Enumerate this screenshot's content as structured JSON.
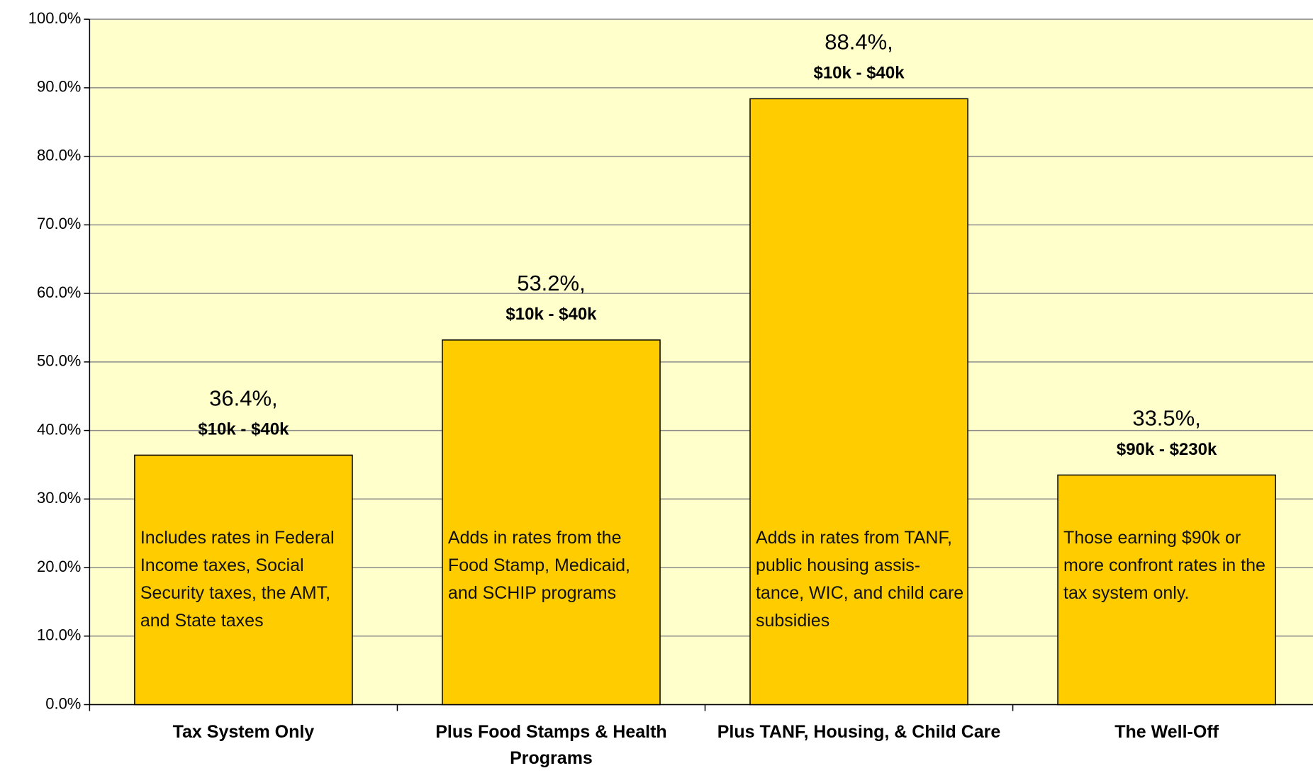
{
  "chart_data": {
    "type": "bar",
    "categories": [
      "Tax System Only",
      "Plus Food Stamps & Health Programs",
      "Plus TANF, Housing, & Child Care",
      "The Well-Off"
    ],
    "values": [
      36.4,
      53.2,
      88.4,
      33.5
    ],
    "value_labels": [
      "36.4%,",
      "53.2%,",
      "88.4%,",
      "33.5%,"
    ],
    "ranges": [
      "$10k - $40k",
      "$10k - $40k",
      "$10k - $40k",
      "$90k - $230k"
    ],
    "notes": [
      "Includes rates in Federal Income taxes, Social Security taxes, the AMT, and State taxes",
      "Adds in rates from the Food Stamp, Medicaid, and SCHIP programs",
      "Adds in rates from TANF, public housing assis-tance, WIC, and child care subsidies",
      "Those earning $90k or more confront rates in the tax system only."
    ],
    "color": "#FFCC00",
    "plot_background": "#FFFFCC",
    "ylim": [
      0,
      100
    ],
    "yticks": [
      {
        "value": 0,
        "label": "0.0%"
      },
      {
        "value": 10,
        "label": "10.0%"
      },
      {
        "value": 20,
        "label": "20.0%"
      },
      {
        "value": 30,
        "label": "30.0%"
      },
      {
        "value": 40,
        "label": "40.0%"
      },
      {
        "value": 50,
        "label": "50.0%"
      },
      {
        "value": 60,
        "label": "60.0%"
      },
      {
        "value": 70,
        "label": "70.0%"
      },
      {
        "value": 80,
        "label": "80.0%"
      },
      {
        "value": 90,
        "label": "90.0%"
      },
      {
        "value": 100,
        "label": "100.0%"
      }
    ],
    "grid": true
  }
}
